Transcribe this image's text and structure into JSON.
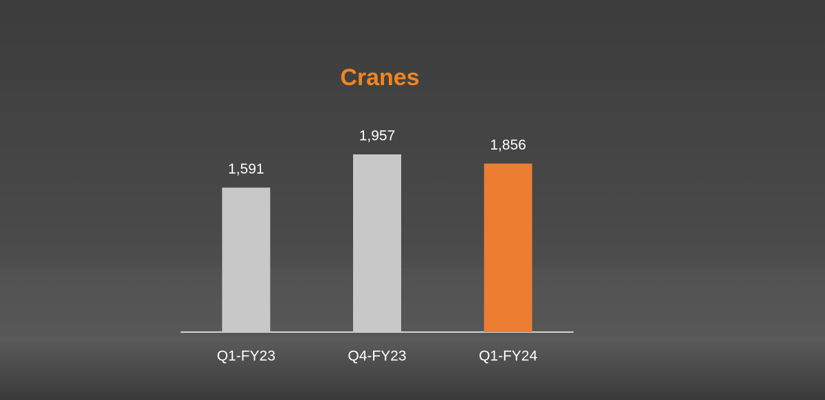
{
  "chart_data": {
    "type": "bar",
    "title": "Cranes",
    "categories": [
      "Q1-FY23",
      "Q4-FY23",
      "Q1-FY24"
    ],
    "values": [
      1591,
      1957,
      1856
    ],
    "value_labels": [
      "1,591",
      "1,957",
      "1,856"
    ],
    "colors": [
      "#c8c8c8",
      "#c8c8c8",
      "#ed7d31"
    ],
    "title_color": "#f0861e"
  }
}
